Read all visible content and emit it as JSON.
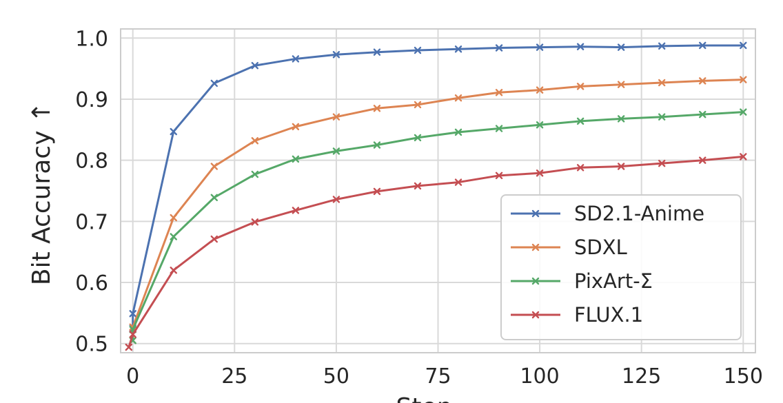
{
  "chart_data": {
    "type": "line",
    "title": "",
    "xlabel": "Step",
    "ylabel": "Bit Accuracy ↑",
    "xlim": [
      -3,
      153
    ],
    "ylim": [
      0.485,
      1.015
    ],
    "x_ticks": [
      0,
      25,
      50,
      75,
      100,
      125,
      150
    ],
    "x_tick_labels": [
      "0",
      "25",
      "50",
      "75",
      "100",
      "125",
      "150"
    ],
    "y_ticks": [
      0.5,
      0.6,
      0.7,
      0.8,
      0.9,
      1.0
    ],
    "y_tick_labels": [
      "0.5",
      "0.6",
      "0.7",
      "0.8",
      "0.9",
      "1.0"
    ],
    "grid": true,
    "legend_position": "lower-right",
    "marker": "x",
    "series": [
      {
        "name": "SD2.1-Anime",
        "color": "#4c72b0",
        "x": [
          0,
          0,
          10,
          20,
          30,
          40,
          50,
          60,
          70,
          80,
          90,
          100,
          110,
          120,
          130,
          140,
          150
        ],
        "y": [
          0.525,
          0.549,
          0.847,
          0.926,
          0.955,
          0.966,
          0.973,
          0.977,
          0.98,
          0.982,
          0.984,
          0.985,
          0.986,
          0.985,
          0.987,
          0.988,
          0.988
        ]
      },
      {
        "name": "SDXL",
        "color": "#dd8452",
        "x": [
          0,
          0,
          10,
          20,
          30,
          40,
          50,
          60,
          70,
          80,
          90,
          100,
          110,
          120,
          130,
          140,
          150
        ],
        "y": [
          0.505,
          0.527,
          0.706,
          0.79,
          0.832,
          0.855,
          0.871,
          0.885,
          0.891,
          0.902,
          0.911,
          0.915,
          0.921,
          0.924,
          0.927,
          0.93,
          0.932
        ]
      },
      {
        "name": "PixArt-Σ",
        "color": "#55a868",
        "x": [
          0,
          0,
          10,
          20,
          30,
          40,
          50,
          60,
          70,
          80,
          90,
          100,
          110,
          120,
          130,
          140,
          150
        ],
        "y": [
          0.505,
          0.523,
          0.675,
          0.739,
          0.777,
          0.802,
          0.815,
          0.825,
          0.837,
          0.846,
          0.852,
          0.858,
          0.864,
          0.868,
          0.871,
          0.875,
          0.879
        ]
      },
      {
        "name": "FLUX.1",
        "color": "#c44e52",
        "x": [
          -1,
          0,
          10,
          20,
          30,
          40,
          50,
          60,
          70,
          80,
          90,
          100,
          110,
          120,
          130,
          140,
          150
        ],
        "y": [
          0.494,
          0.515,
          0.62,
          0.671,
          0.699,
          0.718,
          0.736,
          0.749,
          0.758,
          0.764,
          0.775,
          0.779,
          0.788,
          0.79,
          0.795,
          0.8,
          0.806
        ]
      }
    ]
  }
}
